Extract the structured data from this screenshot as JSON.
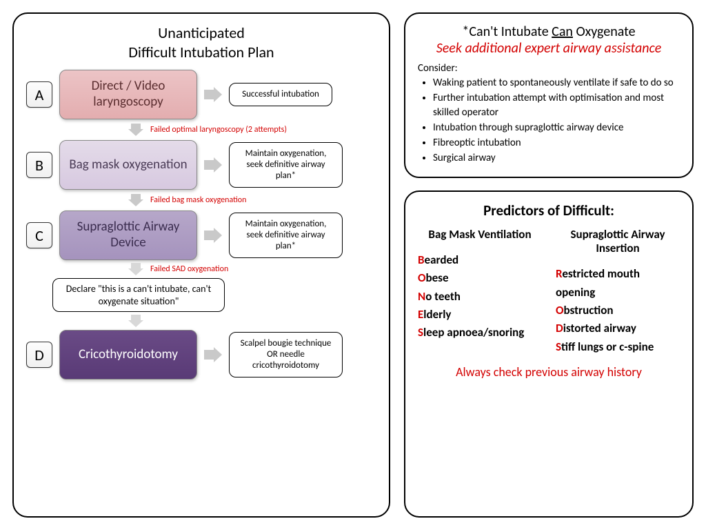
{
  "left": {
    "title_l1": "Unanticipated",
    "title_l2": "Difficult Intubation Plan",
    "steps": [
      {
        "letter": "A",
        "label": "Direct / Video laryngoscopy",
        "bg": "linear-gradient(#ecc4c6,#e3adaf)",
        "color": "#5a2d2f",
        "outcome": "Successful intubation",
        "arrow_color": "#c9c9c9",
        "fail_text": "Failed optimal  laryngoscopy (2 attempts)",
        "down_arrow_color": "#c9c9c9"
      },
      {
        "letter": "B",
        "label": "Bag mask oxygenation",
        "bg": "linear-gradient(#e4dbe9,#d7c9e0)",
        "color": "#4a3b56",
        "outcome": "Maintain oxygenation, seek definitive airway plan*",
        "arrow_color": "#c9c9c9",
        "fail_text": "Failed bag mask oxygenation",
        "down_arrow_color": "#c9c9c9"
      },
      {
        "letter": "C",
        "label": "Supraglottic Airway Device",
        "bg": "linear-gradient(#b6a7c9,#a593bd)",
        "color": "#3a2c4e",
        "outcome": "Maintain oxygenation, seek definitive airway plan*",
        "arrow_color": "#c9c9c9",
        "fail_text": "Failed SAD oxygenation",
        "down_arrow_color": "#d8d8d8"
      },
      {
        "letter": "D",
        "label": "Cricothyroidotomy",
        "bg": "linear-gradient(#6a4b86,#593a76)",
        "color": "#ffffff",
        "outcome": "Scalpel bougie technique OR needle cricothyroidotomy",
        "arrow_color": "#c9c9c9"
      }
    ],
    "declare": "Declare \"this is a can't intubate, can't oxygenate situation\"",
    "declare_down_arrow_color": "#d8d8d8"
  },
  "cio": {
    "title_prefix": "*Can't Intubate ",
    "title_underlined": "Can",
    "title_suffix": " Oxygenate",
    "subtitle": "Seek additional expert airway assistance",
    "consider_label": "Consider:",
    "items": [
      "Waking patient to spontaneously ventilate if safe to do so",
      "Further intubation attempt with optimisation and most skilled operator",
      "Intubation through supraglottic airway device",
      "Fibreoptic intubation",
      "Surgical airway"
    ]
  },
  "pred": {
    "title": "Predictors of Difficult:",
    "col1_head": "Bag Mask Ventilation",
    "col2_head": "Supraglottic Airway Insertion",
    "bones": [
      {
        "i": "B",
        "r": "earded"
      },
      {
        "i": "O",
        "r": "bese"
      },
      {
        "i": "N",
        "r": "o teeth"
      },
      {
        "i": "E",
        "r": "lderly"
      },
      {
        "i": "S",
        "r": "leep apnoea/snoring"
      }
    ],
    "rods": [
      {
        "i": "R",
        "r": "estricted mouth opening"
      },
      {
        "i": "O",
        "r": "bstruction"
      },
      {
        "i": "D",
        "r": "istorted airway"
      },
      {
        "i": "S",
        "r": "tiff lungs or c-spine"
      }
    ],
    "footer": "Always check previous airway history"
  }
}
